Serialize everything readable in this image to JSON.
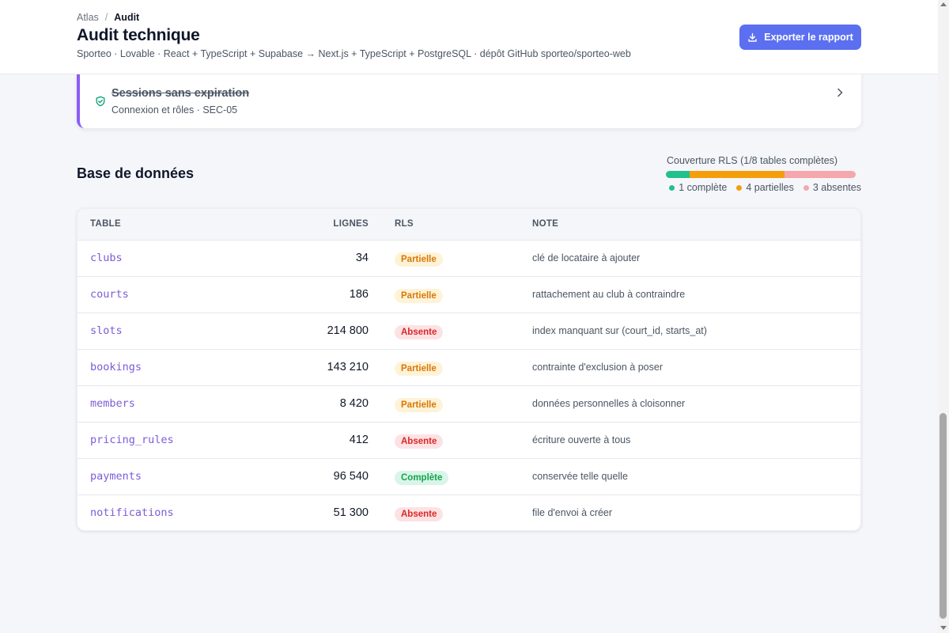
{
  "breadcrumb": {
    "parent": "Atlas",
    "separator": "/",
    "current": "Audit"
  },
  "header": {
    "title": "Audit technique",
    "subtitle": "Sporteo · Lovable · React + TypeScript + Supabase → Next.js + TypeScript + PostgreSQL · dépôt GitHub sporteo/sporteo-web",
    "export_label": "Exporter le rapport",
    "export_icon": "download-icon",
    "accent": "#5b6ff0"
  },
  "issue": {
    "title": "Sessions sans expiration",
    "meta": "Connexion et rôles · SEC-05",
    "icon": "shield-check-icon",
    "status": "resolved"
  },
  "database": {
    "section_title": "Base de données",
    "coverage": {
      "label": "Couverture RLS (1/8 tables complètes)",
      "complete": 1,
      "partial": 4,
      "absent": 3,
      "total": 8,
      "legend_complete": "1 complète",
      "legend_partial": "4 partielles",
      "legend_absent": "3 absentes",
      "colors": {
        "complete": "#22c08a",
        "partial": "#f59e0b",
        "absent": "#f4a7ad"
      }
    },
    "columns": {
      "table": "TABLE",
      "rows": "LIGNES",
      "rls": "RLS",
      "note": "NOTE"
    },
    "badge_styles": {
      "Partielle": {
        "bg": "#fef3d7",
        "fg": "#d97706"
      },
      "Absente": {
        "bg": "#fde2e4",
        "fg": "#dc2626"
      },
      "Complète": {
        "bg": "#d9f5e9",
        "fg": "#16a34a"
      }
    },
    "rows": [
      {
        "name": "clubs",
        "rows": "34",
        "rls": "Partielle",
        "note": "clé de locataire à ajouter"
      },
      {
        "name": "courts",
        "rows": "186",
        "rls": "Partielle",
        "note": "rattachement au club à contraindre"
      },
      {
        "name": "slots",
        "rows": "214 800",
        "rls": "Absente",
        "note": "index manquant sur (court_id, starts_at)"
      },
      {
        "name": "bookings",
        "rows": "143 210",
        "rls": "Partielle",
        "note": "contrainte d'exclusion à poser"
      },
      {
        "name": "members",
        "rows": "8 420",
        "rls": "Partielle",
        "note": "données personnelles à cloisonner"
      },
      {
        "name": "pricing_rules",
        "rows": "412",
        "rls": "Absente",
        "note": "écriture ouverte à tous"
      },
      {
        "name": "payments",
        "rows": "96 540",
        "rls": "Complète",
        "note": "conservée telle quelle"
      },
      {
        "name": "notifications",
        "rows": "51 300",
        "rls": "Absente",
        "note": "file d'envoi à créer"
      }
    ]
  }
}
